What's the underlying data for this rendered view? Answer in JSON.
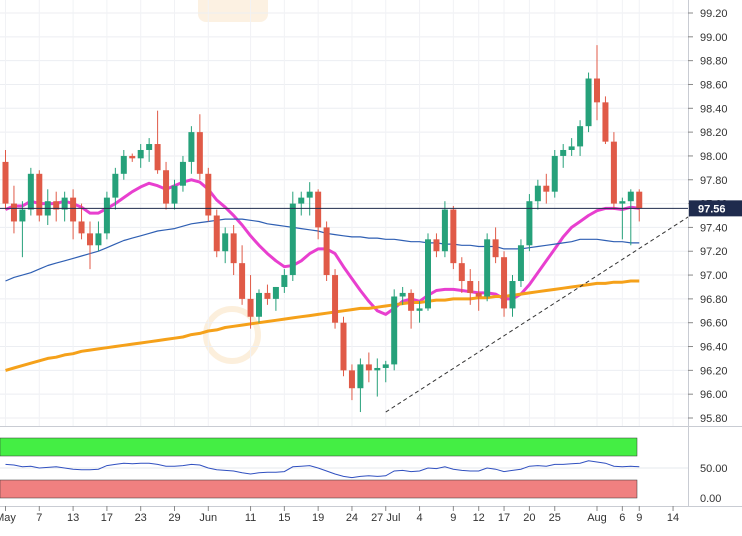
{
  "chart_data": {
    "type": "candlestick",
    "price_axis": {
      "ticks": [
        "99.20",
        "99.00",
        "98.80",
        "98.60",
        "98.40",
        "98.20",
        "98.00",
        "97.80",
        "97.60",
        "97.40",
        "97.20",
        "97.00",
        "96.80",
        "96.60",
        "96.40",
        "96.20",
        "96.00",
        "95.80"
      ],
      "range": [
        95.72,
        99.3
      ],
      "current_price_label": "97.56",
      "current_price": 97.56
    },
    "x_axis": {
      "labels": [
        {
          "text": "May",
          "i": 0
        },
        {
          "text": "7",
          "i": 4
        },
        {
          "text": "13",
          "i": 8
        },
        {
          "text": "17",
          "i": 12
        },
        {
          "text": "23",
          "i": 16
        },
        {
          "text": "29",
          "i": 20
        },
        {
          "text": "Jun",
          "i": 24
        },
        {
          "text": "11",
          "i": 29
        },
        {
          "text": "15",
          "i": 33
        },
        {
          "text": "19",
          "i": 37
        },
        {
          "text": "24",
          "i": 41
        },
        {
          "text": "27 Jul",
          "i": 45
        },
        {
          "text": "4",
          "i": 49
        },
        {
          "text": "9",
          "i": 53
        },
        {
          "text": "12",
          "i": 56
        },
        {
          "text": "17",
          "i": 59
        },
        {
          "text": "20",
          "i": 62
        },
        {
          "text": "25",
          "i": 65
        },
        {
          "text": "Aug",
          "i": 70
        },
        {
          "text": "6",
          "i": 73
        },
        {
          "text": "9",
          "i": 75
        },
        {
          "text": "14",
          "i": 79
        }
      ]
    },
    "candles": [
      [
        97.95,
        98.05,
        97.55,
        97.6
      ],
      [
        97.6,
        97.75,
        97.35,
        97.45
      ],
      [
        97.45,
        97.62,
        97.15,
        97.55
      ],
      [
        97.55,
        97.9,
        97.5,
        97.85
      ],
      [
        97.85,
        97.88,
        97.45,
        97.5
      ],
      [
        97.5,
        97.72,
        97.42,
        97.62
      ],
      [
        97.62,
        97.7,
        97.45,
        97.55
      ],
      [
        97.55,
        97.7,
        97.45,
        97.65
      ],
      [
        97.65,
        97.72,
        97.3,
        97.45
      ],
      [
        97.45,
        97.6,
        97.3,
        97.35
      ],
      [
        97.35,
        97.45,
        97.05,
        97.25
      ],
      [
        97.25,
        97.45,
        97.2,
        97.35
      ],
      [
        97.35,
        97.7,
        97.3,
        97.65
      ],
      [
        97.65,
        97.9,
        97.55,
        97.85
      ],
      [
        97.85,
        98.05,
        97.8,
        98.0
      ],
      [
        98.0,
        98.02,
        97.95,
        97.98
      ],
      [
        97.98,
        98.1,
        97.9,
        98.05
      ],
      [
        98.05,
        98.15,
        97.95,
        98.1
      ],
      [
        98.1,
        98.38,
        97.85,
        97.88
      ],
      [
        97.88,
        97.95,
        97.55,
        97.6
      ],
      [
        97.6,
        97.8,
        97.55,
        97.75
      ],
      [
        97.75,
        98.0,
        97.7,
        97.95
      ],
      [
        97.95,
        98.25,
        97.85,
        98.2
      ],
      [
        98.2,
        98.35,
        97.8,
        97.85
      ],
      [
        97.85,
        97.9,
        97.45,
        97.5
      ],
      [
        97.5,
        97.55,
        97.15,
        97.2
      ],
      [
        97.2,
        97.4,
        97.1,
        97.35
      ],
      [
        97.35,
        97.42,
        97.0,
        97.1
      ],
      [
        97.1,
        97.25,
        96.75,
        96.8
      ],
      [
        96.8,
        97.0,
        96.55,
        96.65
      ],
      [
        96.65,
        96.88,
        96.6,
        96.85
      ],
      [
        96.85,
        96.92,
        96.75,
        96.8
      ],
      [
        96.8,
        96.9,
        96.7,
        96.9
      ],
      [
        96.9,
        97.05,
        96.85,
        97.0
      ],
      [
        97.0,
        97.7,
        96.95,
        97.6
      ],
      [
        97.6,
        97.7,
        97.5,
        97.65
      ],
      [
        97.65,
        97.78,
        97.5,
        97.7
      ],
      [
        97.7,
        97.72,
        97.3,
        97.4
      ],
      [
        97.4,
        97.45,
        96.95,
        97.0
      ],
      [
        97.0,
        97.05,
        96.55,
        96.6
      ],
      [
        96.6,
        96.65,
        96.15,
        96.2
      ],
      [
        96.2,
        96.25,
        95.95,
        96.05
      ],
      [
        96.05,
        96.3,
        95.85,
        96.25
      ],
      [
        96.25,
        96.35,
        96.1,
        96.2
      ],
      [
        96.2,
        96.3,
        95.98,
        96.22
      ],
      [
        96.22,
        96.28,
        96.1,
        96.25
      ],
      [
        96.25,
        96.88,
        96.2,
        96.82
      ],
      [
        96.82,
        96.9,
        96.75,
        96.85
      ],
      [
        96.85,
        96.88,
        96.55,
        96.7
      ],
      [
        96.7,
        96.78,
        96.6,
        96.72
      ],
      [
        96.72,
        97.35,
        96.7,
        97.3
      ],
      [
        97.3,
        97.35,
        97.15,
        97.2
      ],
      [
        97.2,
        97.62,
        97.15,
        97.55
      ],
      [
        97.55,
        97.58,
        97.05,
        97.1
      ],
      [
        97.1,
        97.15,
        96.85,
        96.95
      ],
      [
        96.95,
        97.05,
        96.75,
        96.85
      ],
      [
        96.85,
        96.95,
        96.7,
        96.82
      ],
      [
        96.82,
        97.35,
        96.78,
        97.3
      ],
      [
        97.3,
        97.4,
        97.1,
        97.15
      ],
      [
        97.15,
        97.2,
        96.65,
        96.72
      ],
      [
        96.72,
        97.0,
        96.65,
        96.95
      ],
      [
        96.95,
        97.3,
        96.9,
        97.25
      ],
      [
        97.25,
        97.68,
        97.2,
        97.62
      ],
      [
        97.62,
        97.8,
        97.55,
        97.75
      ],
      [
        97.75,
        97.85,
        97.6,
        97.7
      ],
      [
        97.7,
        98.05,
        97.65,
        98.0
      ],
      [
        98.0,
        98.1,
        97.9,
        98.05
      ],
      [
        98.05,
        98.15,
        98.0,
        98.08
      ],
      [
        98.08,
        98.3,
        98.0,
        98.25
      ],
      [
        98.25,
        98.7,
        98.2,
        98.65
      ],
      [
        98.65,
        98.93,
        98.3,
        98.45
      ],
      [
        98.45,
        98.5,
        98.1,
        98.12
      ],
      [
        98.12,
        98.2,
        97.55,
        97.6
      ],
      [
        97.6,
        97.65,
        97.3,
        97.62
      ],
      [
        97.62,
        97.72,
        97.25,
        97.7
      ],
      [
        97.7,
        97.72,
        97.45,
        97.56
      ]
    ],
    "moving_averages": [
      {
        "color": "#e83fcf",
        "values": [
          97.55,
          97.58,
          97.58,
          97.62,
          97.6,
          97.6,
          97.6,
          97.62,
          97.6,
          97.57,
          97.52,
          97.52,
          97.56,
          97.6,
          97.65,
          97.7,
          97.74,
          97.77,
          97.75,
          97.72,
          97.75,
          97.78,
          97.8,
          97.78,
          97.72,
          97.63,
          97.57,
          97.5,
          97.42,
          97.33,
          97.25,
          97.18,
          97.12,
          97.07,
          97.08,
          97.12,
          97.18,
          97.22,
          97.22,
          97.18,
          97.07,
          96.97,
          96.87,
          96.78,
          96.7,
          96.67,
          96.72,
          96.78,
          96.8,
          96.78,
          96.83,
          96.87,
          96.88,
          96.88,
          96.87,
          96.86,
          96.85,
          96.85,
          96.84,
          96.8,
          96.8,
          96.84,
          96.92,
          97.02,
          97.12,
          97.22,
          97.32,
          97.4,
          97.45,
          97.5,
          97.54,
          97.56,
          97.56,
          97.55,
          97.57,
          97.56
        ]
      },
      {
        "color": "#2f5fb3",
        "values": [
          96.95,
          96.98,
          97.0,
          97.02,
          97.05,
          97.08,
          97.1,
          97.12,
          97.14,
          97.16,
          97.18,
          97.2,
          97.23,
          97.26,
          97.29,
          97.31,
          97.33,
          97.35,
          97.37,
          97.38,
          97.39,
          97.41,
          97.43,
          97.44,
          97.45,
          97.46,
          97.47,
          97.47,
          97.47,
          97.46,
          97.45,
          97.43,
          97.42,
          97.41,
          97.4,
          97.39,
          97.38,
          97.37,
          97.35,
          97.34,
          97.33,
          97.32,
          97.32,
          97.31,
          97.31,
          97.3,
          97.3,
          97.29,
          97.28,
          97.28,
          97.27,
          97.27,
          97.26,
          97.26,
          97.25,
          97.25,
          97.24,
          97.24,
          97.24,
          97.22,
          97.22,
          97.22,
          97.23,
          97.24,
          97.25,
          97.26,
          97.27,
          97.28,
          97.3,
          97.3,
          97.3,
          97.29,
          97.28,
          97.28,
          97.27,
          97.27
        ]
      },
      {
        "color": "#f5a11a",
        "values": [
          96.2,
          96.22,
          96.24,
          96.26,
          96.28,
          96.3,
          96.31,
          96.33,
          96.34,
          96.36,
          96.37,
          96.38,
          96.39,
          96.4,
          96.41,
          96.42,
          96.43,
          96.44,
          96.45,
          96.46,
          96.47,
          96.48,
          96.5,
          96.51,
          96.53,
          96.54,
          96.56,
          96.57,
          96.58,
          96.59,
          96.6,
          96.61,
          96.62,
          96.63,
          96.64,
          96.65,
          96.66,
          96.67,
          96.68,
          96.69,
          96.7,
          96.71,
          96.72,
          96.72,
          96.73,
          96.74,
          96.75,
          96.76,
          96.77,
          96.77,
          96.78,
          96.79,
          96.79,
          96.8,
          96.8,
          96.8,
          96.81,
          96.81,
          96.82,
          96.82,
          96.83,
          96.84,
          96.85,
          96.86,
          96.87,
          96.88,
          96.89,
          96.9,
          96.91,
          96.92,
          96.93,
          96.93,
          96.94,
          96.94,
          96.95,
          96.95
        ]
      }
    ],
    "trendline": {
      "from": {
        "i": 45,
        "price": 95.85
      },
      "to": {
        "i": 80,
        "price": 97.56
      }
    },
    "oscillator": {
      "ticks": [
        "50.00",
        "0.00"
      ],
      "range": [
        0,
        100
      ],
      "overbought_level": 70,
      "oversold_level": 30,
      "overbought_color": "#44ee44",
      "oversold_color": "#f08080",
      "line_color": "#3050c0",
      "values": [
        56,
        55,
        52,
        53,
        50,
        51,
        52,
        50,
        48,
        47,
        47,
        48,
        54,
        56,
        58,
        57,
        58,
        58,
        56,
        53,
        53,
        54,
        56,
        55,
        50,
        47,
        46,
        45,
        42,
        40,
        42,
        43,
        43,
        44,
        52,
        53,
        54,
        50,
        45,
        40,
        36,
        34,
        36,
        37,
        36,
        37,
        45,
        46,
        44,
        45,
        50,
        49,
        52,
        48,
        46,
        45,
        45,
        50,
        48,
        44,
        46,
        48,
        53,
        54,
        53,
        56,
        56,
        57,
        58,
        62,
        60,
        58,
        53,
        52,
        53,
        52
      ]
    },
    "colors": {
      "up": "#26a17a",
      "down": "#e05a47",
      "watermark": "#f5c98b"
    }
  }
}
